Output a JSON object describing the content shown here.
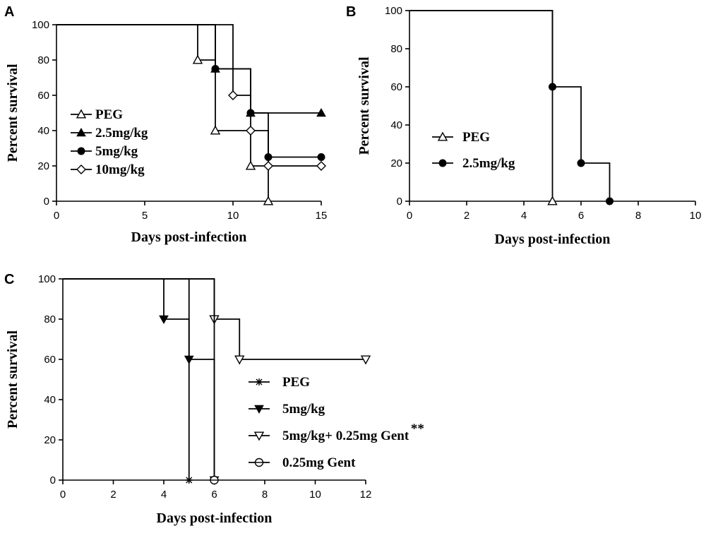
{
  "chart_data": [
    {
      "panel": "A",
      "type": "line",
      "subtype": "kaplan-meier survival",
      "xlabel": "Days post-infection",
      "ylabel": "Percent survival",
      "xlim": [
        0,
        15
      ],
      "ylim": [
        0,
        100
      ],
      "xticks": [
        "0",
        "5",
        "10",
        "15"
      ],
      "yticks": [
        "0",
        "20",
        "40",
        "60",
        "80",
        "100"
      ],
      "legend_position": "left-middle",
      "series": [
        {
          "name": "PEG",
          "marker": "triangle-up-open",
          "steps": [
            [
              0,
              100
            ],
            [
              8,
              80
            ],
            [
              9,
              40
            ],
            [
              11,
              20
            ],
            [
              12,
              0
            ]
          ],
          "markers": [
            [
              8,
              80
            ],
            [
              9,
              40
            ],
            [
              11,
              20
            ],
            [
              12,
              0
            ]
          ]
        },
        {
          "name": "2.5mg/kg",
          "marker": "triangle-up-filled",
          "steps": [
            [
              0,
              100
            ],
            [
              9,
              75
            ],
            [
              11,
              50
            ],
            [
              15,
              50
            ]
          ],
          "markers": [
            [
              9,
              75
            ],
            [
              11,
              50
            ],
            [
              15,
              50
            ]
          ]
        },
        {
          "name": "5mg/kg",
          "marker": "circle-filled",
          "steps": [
            [
              0,
              100
            ],
            [
              9,
              75
            ],
            [
              11,
              50
            ],
            [
              12,
              25
            ],
            [
              15,
              25
            ]
          ],
          "markers": [
            [
              9,
              75
            ],
            [
              11,
              50
            ],
            [
              12,
              25
            ],
            [
              15,
              25
            ]
          ]
        },
        {
          "name": "10mg/kg",
          "marker": "diamond-open",
          "steps": [
            [
              0,
              100
            ],
            [
              10,
              60
            ],
            [
              11,
              40
            ],
            [
              12,
              20
            ],
            [
              15,
              20
            ]
          ],
          "markers": [
            [
              10,
              60
            ],
            [
              11,
              40
            ],
            [
              12,
              20
            ],
            [
              15,
              20
            ]
          ]
        }
      ]
    },
    {
      "panel": "B",
      "type": "line",
      "subtype": "kaplan-meier survival",
      "xlabel": "Days post-infection",
      "ylabel": "Percent survival",
      "xlim": [
        0,
        10
      ],
      "ylim": [
        0,
        100
      ],
      "xticks": [
        "0",
        "2",
        "4",
        "6",
        "8",
        "10"
      ],
      "yticks": [
        "0",
        "20",
        "40",
        "60",
        "80",
        "100"
      ],
      "legend_position": "left-middle",
      "series": [
        {
          "name": "PEG",
          "marker": "triangle-up-open",
          "steps": [
            [
              0,
              100
            ],
            [
              5,
              0
            ]
          ],
          "markers": [
            [
              5,
              0
            ]
          ]
        },
        {
          "name": "2.5mg/kg",
          "marker": "circle-filled",
          "steps": [
            [
              0,
              100
            ],
            [
              5,
              60
            ],
            [
              6,
              20
            ],
            [
              7,
              0
            ]
          ],
          "markers": [
            [
              5,
              60
            ],
            [
              6,
              20
            ],
            [
              7,
              0
            ]
          ]
        }
      ]
    },
    {
      "panel": "C",
      "type": "line",
      "subtype": "kaplan-meier survival",
      "xlabel": "Days post-infection",
      "ylabel": "Percent survival",
      "xlim": [
        0,
        12
      ],
      "ylim": [
        0,
        100
      ],
      "xticks": [
        "0",
        "2",
        "4",
        "6",
        "8",
        "10",
        "12"
      ],
      "yticks": [
        "0",
        "20",
        "40",
        "60",
        "80",
        "100"
      ],
      "legend_position": "right-bottom",
      "series": [
        {
          "name": "PEG",
          "marker": "star",
          "steps": [
            [
              0,
              100
            ],
            [
              5,
              0
            ]
          ],
          "markers": [
            [
              5,
              0
            ]
          ]
        },
        {
          "name": "5mg/kg",
          "marker": "triangle-down-filled",
          "steps": [
            [
              0,
              100
            ],
            [
              4,
              80
            ],
            [
              5,
              60
            ],
            [
              6,
              0
            ]
          ],
          "markers": [
            [
              4,
              80
            ],
            [
              5,
              60
            ],
            [
              6,
              0
            ]
          ]
        },
        {
          "name": "5mg/kg+ 0.25mg Gent",
          "superscript": "**",
          "marker": "triangle-down-open",
          "steps": [
            [
              0,
              100
            ],
            [
              6,
              80
            ],
            [
              7,
              60
            ],
            [
              12,
              60
            ]
          ],
          "markers": [
            [
              6,
              80
            ],
            [
              7,
              60
            ],
            [
              12,
              60
            ]
          ]
        },
        {
          "name": "0.25mg Gent",
          "marker": "circle-open-bar",
          "steps": [
            [
              0,
              100
            ],
            [
              6,
              0
            ]
          ],
          "markers": [
            [
              6,
              0
            ]
          ]
        }
      ]
    }
  ]
}
